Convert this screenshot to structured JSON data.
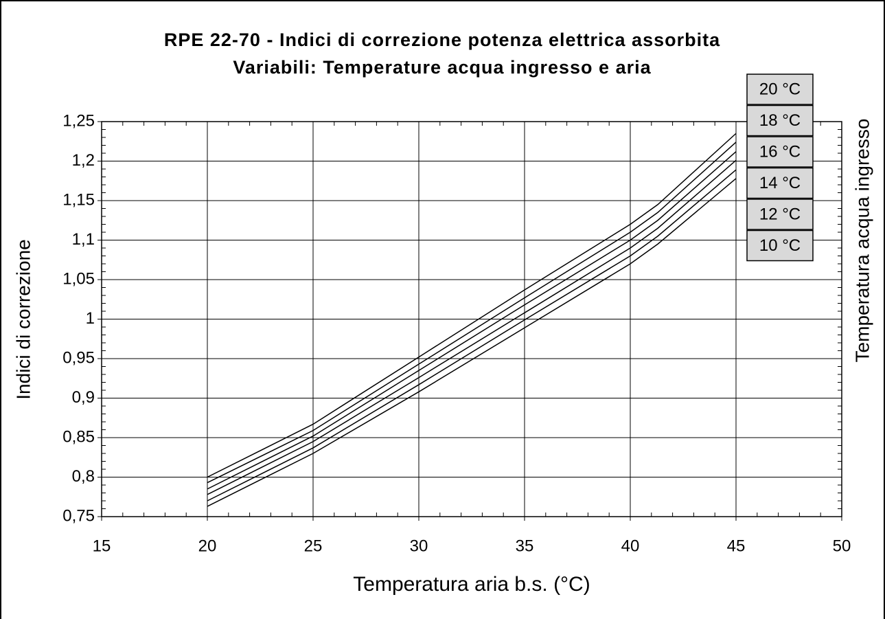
{
  "chart_data": {
    "type": "line",
    "title": "RPE 22-70 - Indici di correzione potenza elettrica assorbita",
    "subtitle": "Variabili: Temperature acqua ingresso e aria",
    "x_label": "Temperatura aria b.s. (°C)",
    "y_label": "Indici di correzione",
    "legend_title": "Temperatura acqua ingresso",
    "x": [
      20,
      25,
      30,
      35,
      40,
      41.3,
      45
    ],
    "series": [
      {
        "name": "20 °C",
        "color": "#000000",
        "values": [
          0.8,
          0.867,
          0.952,
          1.037,
          1.12,
          1.145,
          1.235
        ]
      },
      {
        "name": "18 °C",
        "color": "#000000",
        "values": [
          0.793,
          0.859,
          0.943,
          1.027,
          1.11,
          1.135,
          1.224
        ]
      },
      {
        "name": "16 °C",
        "color": "#000000",
        "values": [
          0.785,
          0.852,
          0.935,
          1.018,
          1.1,
          1.125,
          1.212
        ]
      },
      {
        "name": "14 °C",
        "color": "#000000",
        "values": [
          0.778,
          0.845,
          0.926,
          1.008,
          1.09,
          1.115,
          1.201
        ]
      },
      {
        "name": "12 °C",
        "color": "#000000",
        "values": [
          0.77,
          0.837,
          0.917,
          0.999,
          1.08,
          1.105,
          1.189
        ]
      },
      {
        "name": "10 °C",
        "color": "#000000",
        "values": [
          0.763,
          0.83,
          0.908,
          0.989,
          1.07,
          1.095,
          1.178
        ]
      }
    ],
    "xlim": [
      15,
      50
    ],
    "xticks": [
      15,
      20,
      25,
      30,
      35,
      40,
      45,
      50
    ],
    "ylim": [
      0.75,
      1.25
    ],
    "yticks": [
      {
        "value": 0.75,
        "label": "0,75"
      },
      {
        "value": 0.8,
        "label": "0,8"
      },
      {
        "value": 0.85,
        "label": "0,85"
      },
      {
        "value": 0.9,
        "label": "0,9"
      },
      {
        "value": 0.95,
        "label": "0,95"
      },
      {
        "value": 1,
        "label": "1"
      },
      {
        "value": 1.05,
        "label": "1,05"
      },
      {
        "value": 1.1,
        "label": "1,1"
      },
      {
        "value": 1.15,
        "label": "1,15"
      },
      {
        "value": 1.2,
        "label": "1,2"
      },
      {
        "value": 1.25,
        "label": "1,25"
      }
    ],
    "grid": true,
    "legend": "right"
  }
}
